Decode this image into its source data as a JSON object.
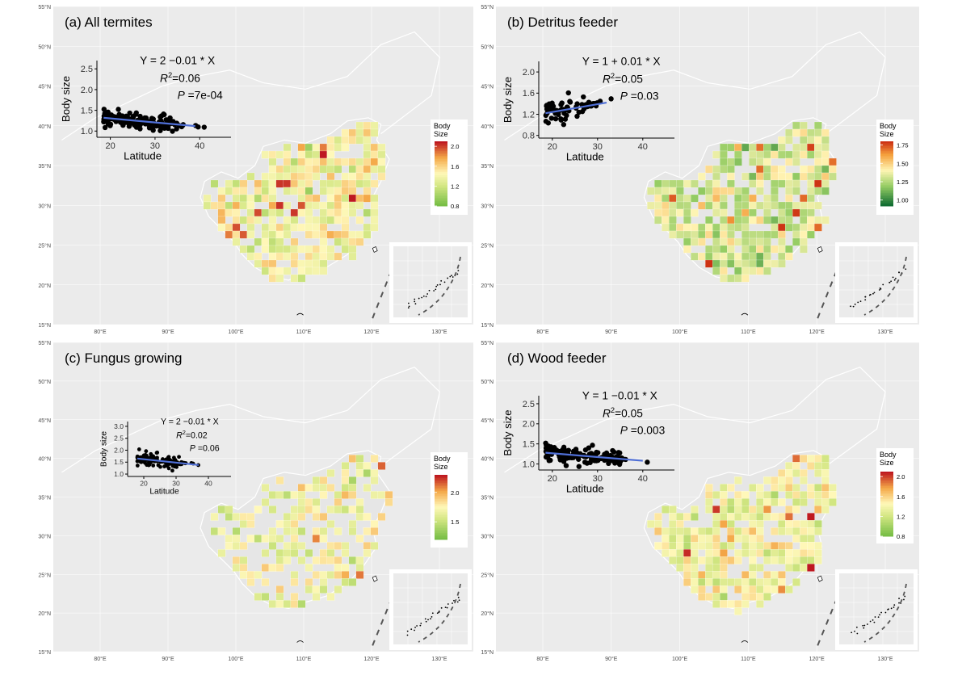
{
  "figure": {
    "lat_ticks": [
      "55°N",
      "50°N",
      "45°N",
      "40°N",
      "35°N",
      "30°N",
      "25°N",
      "20°N",
      "15°N"
    ],
    "lon_ticks": [
      "80°E",
      "90°E",
      "100°E",
      "110°E",
      "120°E",
      "130°E"
    ]
  },
  "chart_data": [
    {
      "type": "scatter",
      "title": "(a) All termites",
      "map_legend": {
        "title_line1": "Body",
        "title_line2": "Size",
        "ticks": [
          "2.0",
          "1.6",
          "1.2",
          "0.8"
        ],
        "range": [
          0.8,
          2.1
        ],
        "palette": "green-yellow-red"
      },
      "inset": {
        "xlabel": "Latitude",
        "ylabel": "Body size",
        "xlim": [
          17,
          47
        ],
        "ylim": [
          0.85,
          2.7
        ],
        "xticks": [
          "20",
          "30",
          "40"
        ],
        "yticks": [
          "2.5",
          "2.0",
          "1.5",
          "1.0"
        ],
        "ytick_values": [
          2.5,
          2.0,
          1.5,
          1.0
        ],
        "xtick_values": [
          20,
          30,
          40
        ],
        "equation": "Y = 2 −0.01 * X",
        "r2": "=0.06",
        "p": "=7e-04",
        "fit": {
          "x": [
            18.5,
            39
          ],
          "y": [
            1.32,
            1.12
          ]
        },
        "n_points": 160,
        "x_range": [
          18.5,
          41
        ],
        "center": 1.22,
        "spread": 0.18
      }
    },
    {
      "type": "scatter",
      "title": "(b) Detritus feeder",
      "map_legend": {
        "title_line1": "Body",
        "title_line2": "Size",
        "ticks": [
          "1.75",
          "1.50",
          "1.25",
          "1.00"
        ],
        "range": [
          0.92,
          1.8
        ],
        "palette": "darkgreen-yellow-red"
      },
      "inset": {
        "xlabel": "Latitude",
        "ylabel": "Body size",
        "xlim": [
          17,
          47
        ],
        "ylim": [
          0.75,
          2.2
        ],
        "xticks": [
          "20",
          "30",
          "40"
        ],
        "yticks": [
          "2.0",
          "1.6",
          "1.2",
          "0.8"
        ],
        "ytick_values": [
          2.0,
          1.6,
          1.2,
          0.8
        ],
        "xtick_values": [
          20,
          30,
          40
        ],
        "equation": "Y = 1 + 0.01 * X",
        "r2": "=0.05",
        "p": "=0.03",
        "fit": {
          "x": [
            18.5,
            32
          ],
          "y": [
            1.22,
            1.42
          ]
        },
        "n_points": 80,
        "x_range": [
          18.5,
          33
        ],
        "center": 1.3,
        "spread": 0.22
      }
    },
    {
      "type": "scatter",
      "title": "(c) Fungus growing",
      "map_legend": {
        "title_line1": "Body",
        "title_line2": "Size",
        "ticks": [
          "2.0",
          "1.5"
        ],
        "range": [
          1.2,
          2.3
        ],
        "palette": "green-yellow-red"
      },
      "inset": {
        "xlabel": "Latitude",
        "ylabel": "Body size",
        "xlim": [
          15,
          47
        ],
        "ylim": [
          0.9,
          3.2
        ],
        "xticks": [
          "20",
          "30",
          "40"
        ],
        "yticks": [
          "3.0",
          "2.5",
          "2.0",
          "1.5",
          "1.0"
        ],
        "ytick_values": [
          3.0,
          2.5,
          2.0,
          1.5,
          1.0
        ],
        "xtick_values": [
          20,
          30,
          40
        ],
        "equation": "Y = 2 −0.01 * X",
        "r2": "=0.02",
        "p": "=0.06",
        "fit": {
          "x": [
            18,
            37
          ],
          "y": [
            1.65,
            1.38
          ]
        },
        "n_points": 110,
        "x_range": [
          18,
          37
        ],
        "center": 1.5,
        "spread": 0.3
      }
    },
    {
      "type": "scatter",
      "title": "(d) Wood feeder",
      "map_legend": {
        "title_line1": "Body",
        "title_line2": "Size",
        "ticks": [
          "2.0",
          "1.6",
          "1.2",
          "0.8"
        ],
        "range": [
          0.8,
          2.1
        ],
        "palette": "green-yellow-red"
      },
      "inset": {
        "xlabel": "Latitude",
        "ylabel": "Body size",
        "xlim": [
          17,
          47
        ],
        "ylim": [
          0.85,
          2.7
        ],
        "xticks": [
          "20",
          "30",
          "40"
        ],
        "yticks": [
          "2.5",
          "2.0",
          "1.5",
          "1.0"
        ],
        "ytick_values": [
          2.5,
          2.0,
          1.5,
          1.0
        ],
        "xtick_values": [
          20,
          30,
          40
        ],
        "equation": "Y = 1 −0.01 * X",
        "r2": "=0.05",
        "p": "=0.003",
        "fit": {
          "x": [
            18.5,
            40
          ],
          "y": [
            1.28,
            1.08
          ]
        },
        "n_points": 150,
        "x_range": [
          18.5,
          41
        ],
        "center": 1.22,
        "spread": 0.2
      }
    }
  ],
  "labels": {
    "r2_prefix": "R",
    "r2_sup": "2",
    "p_prefix": "P"
  }
}
